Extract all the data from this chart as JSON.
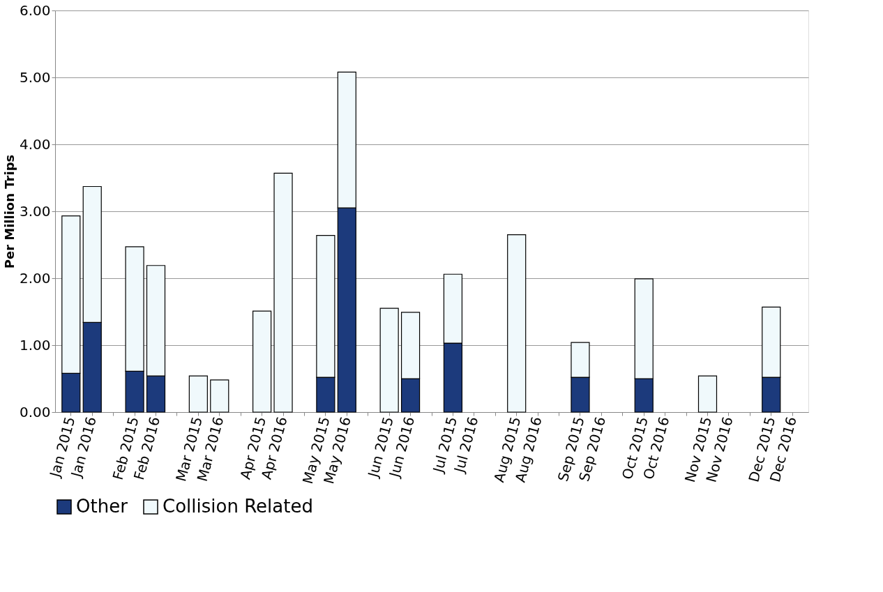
{
  "chart_data": {
    "type": "bar",
    "stacked": true,
    "ylabel": "Per Million Trips",
    "categories": [
      "Jan 2015",
      "Jan 2016",
      null,
      "Feb 2015",
      "Feb 2016",
      null,
      "Mar 2015",
      "Mar 2016",
      null,
      "Apr 2015",
      "Apr 2016",
      null,
      "May 2015",
      "May 2016",
      null,
      "Jun 2015",
      "Jun 2016",
      null,
      "Jul 2015",
      "Jul 2016",
      null,
      "Aug 2015",
      "Aug 2016",
      null,
      "Sep 2015",
      "Sep 2016",
      null,
      "Oct 2015",
      "Oct 2016",
      null,
      "Nov 2015",
      "Nov 2016",
      null,
      "Dec 2015",
      "Dec 2016"
    ],
    "series": [
      {
        "name": "Other",
        "color": "#1c3a7c",
        "values": [
          0.58,
          1.34,
          null,
          0.61,
          0.54,
          null,
          null,
          null,
          null,
          null,
          null,
          null,
          0.52,
          3.05,
          null,
          null,
          0.5,
          null,
          1.03,
          null,
          null,
          null,
          null,
          null,
          0.52,
          null,
          null,
          0.5,
          null,
          null,
          null,
          null,
          null,
          0.52,
          null
        ]
      },
      {
        "name": "Collision Related",
        "color": "#f0f9fc",
        "values": [
          2.35,
          2.03,
          null,
          1.86,
          1.65,
          null,
          0.54,
          0.48,
          null,
          1.51,
          3.57,
          null,
          2.12,
          2.03,
          null,
          1.55,
          0.99,
          null,
          1.03,
          null,
          null,
          2.65,
          null,
          null,
          0.52,
          null,
          null,
          1.49,
          null,
          null,
          0.54,
          null,
          null,
          1.05,
          null
        ]
      }
    ],
    "ylim": [
      0,
      6
    ],
    "yticks": [
      {
        "value": 0,
        "label": "0.00"
      },
      {
        "value": 1,
        "label": "1.00"
      },
      {
        "value": 2,
        "label": "2.00"
      },
      {
        "value": 3,
        "label": "3.00"
      },
      {
        "value": 4,
        "label": "4.00"
      },
      {
        "value": 5,
        "label": "5.00"
      },
      {
        "value": 6,
        "label": "6.00"
      }
    ],
    "grid": "y",
    "legend": "bottom"
  }
}
